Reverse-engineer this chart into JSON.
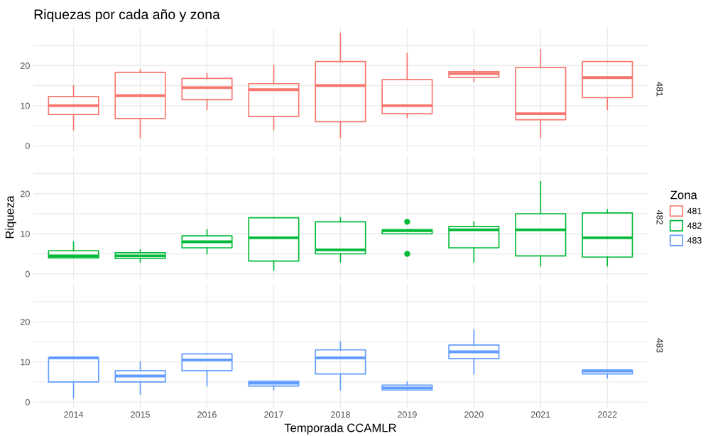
{
  "chart_data": [
    {
      "type": "box",
      "title": "Riquezas por cada año y zona",
      "categories": [
        "2014",
        "2015",
        "2016",
        "2017",
        "2018",
        "2019",
        "2020",
        "2021",
        "2022"
      ],
      "series": [
        {
          "name": "481",
          "color": "#f8766d",
          "boxes": [
            {
              "low": 4,
              "q1": 7.8,
              "median": 10,
              "q3": 12.3,
              "high": 15
            },
            {
              "low": 2,
              "q1": 6.8,
              "median": 12.5,
              "q3": 18.3,
              "high": 19
            },
            {
              "low": 9,
              "q1": 11.5,
              "median": 14.5,
              "q3": 16.8,
              "high": 18
            },
            {
              "low": 4,
              "q1": 7.3,
              "median": 14,
              "q3": 15.5,
              "high": 20
            },
            {
              "low": 2,
              "q1": 6,
              "median": 15,
              "q3": 21,
              "high": 28
            },
            {
              "low": 7,
              "q1": 8,
              "median": 10,
              "q3": 16.5,
              "high": 23
            },
            {
              "low": 16,
              "q1": 17,
              "median": 18,
              "q3": 18.5,
              "high": 19
            },
            {
              "low": 2,
              "q1": 6.5,
              "median": 8,
              "q3": 19.5,
              "high": 24
            },
            {
              "low": 9,
              "q1": 12,
              "median": 17,
              "q3": 21,
              "high": 21
            }
          ]
        }
      ],
      "annotations": [
        "481"
      ],
      "ylim": [
        -1.4,
        29.6
      ],
      "yticks": [
        0,
        {
          "value": 5,
          "label": null
        },
        10,
        {
          "value": 15,
          "label": null
        },
        20,
        {
          "value": 25,
          "label": null
        }
      ],
      "grid": true,
      "tick_labels": "y"
    },
    {
      "type": "box",
      "ylabel": "Riqueza",
      "legend_title": "Zona",
      "legend": "right",
      "categories": [
        "2014",
        "2015",
        "2016",
        "2017",
        "2018",
        "2019",
        "2020",
        "2021",
        "2022"
      ],
      "series": [
        {
          "name": "482",
          "color": "#00ba38",
          "boxes": [
            {
              "low": 4,
              "q1": 4,
              "median": 4.5,
              "q3": 5.8,
              "high": 8
            },
            {
              "low": 3,
              "q1": 3.8,
              "median": 4.5,
              "q3": 5.3,
              "high": 6
            },
            {
              "low": 5,
              "q1": 6.5,
              "median": 8,
              "q3": 9.5,
              "high": 11
            },
            {
              "low": 1,
              "q1": 3.2,
              "median": 9,
              "q3": 14,
              "high": 14
            },
            {
              "low": 3,
              "q1": 5,
              "median": 6,
              "q3": 13,
              "high": 14
            },
            {
              "low": 10,
              "q1": 10,
              "median": 10.8,
              "q3": 11,
              "high": 11,
              "outliers": [
                13,
                5
              ]
            },
            {
              "low": 3,
              "q1": 6.5,
              "median": 11,
              "q3": 11.8,
              "high": 13
            },
            {
              "low": 2,
              "q1": 4.5,
              "median": 11,
              "q3": 15,
              "high": 23
            },
            {
              "low": 2,
              "q1": 4.2,
              "median": 9,
              "q3": 15.2,
              "high": 16
            }
          ]
        }
      ],
      "annotations": [
        "482"
      ],
      "ylim": [
        -1.4,
        29.6
      ],
      "yticks": [
        0,
        {
          "value": 5,
          "label": null
        },
        10,
        {
          "value": 15,
          "label": null
        },
        20,
        {
          "value": 25,
          "label": null
        }
      ],
      "grid": true,
      "tick_labels": "y"
    },
    {
      "type": "box",
      "xlabel": "Temporada CCAMLR",
      "categories": [
        "2014",
        "2015",
        "2016",
        "2017",
        "2018",
        "2019",
        "2020",
        "2021",
        "2022"
      ],
      "series": [
        {
          "name": "483",
          "color": "#619cff",
          "boxes": [
            {
              "low": 1,
              "q1": 5,
              "median": 11,
              "q3": 11,
              "high": 11
            },
            {
              "low": 2,
              "q1": 5,
              "median": 6.5,
              "q3": 7.8,
              "high": 10
            },
            {
              "low": 4,
              "q1": 7.8,
              "median": 10.5,
              "q3": 12,
              "high": 12
            },
            {
              "low": 3,
              "q1": 4,
              "median": 4.7,
              "q3": 5.2,
              "high": 5.2
            },
            {
              "low": 3,
              "q1": 7,
              "median": 11,
              "q3": 13,
              "high": 15
            },
            {
              "low": 3,
              "q1": 3,
              "median": 3.5,
              "q3": 4.2,
              "high": 5
            },
            {
              "low": 7,
              "q1": 10.8,
              "median": 12.5,
              "q3": 14.2,
              "high": 18
            },
            null,
            {
              "low": 6,
              "q1": 7,
              "median": 7.7,
              "q3": 8,
              "high": 8
            }
          ]
        }
      ],
      "annotations": [
        "483"
      ],
      "ylim": [
        -1.4,
        29.6
      ],
      "yticks": [
        0,
        {
          "value": 5,
          "label": null
        },
        10,
        {
          "value": 15,
          "label": null
        },
        20,
        {
          "value": 25,
          "label": null
        }
      ],
      "grid": true
    }
  ]
}
